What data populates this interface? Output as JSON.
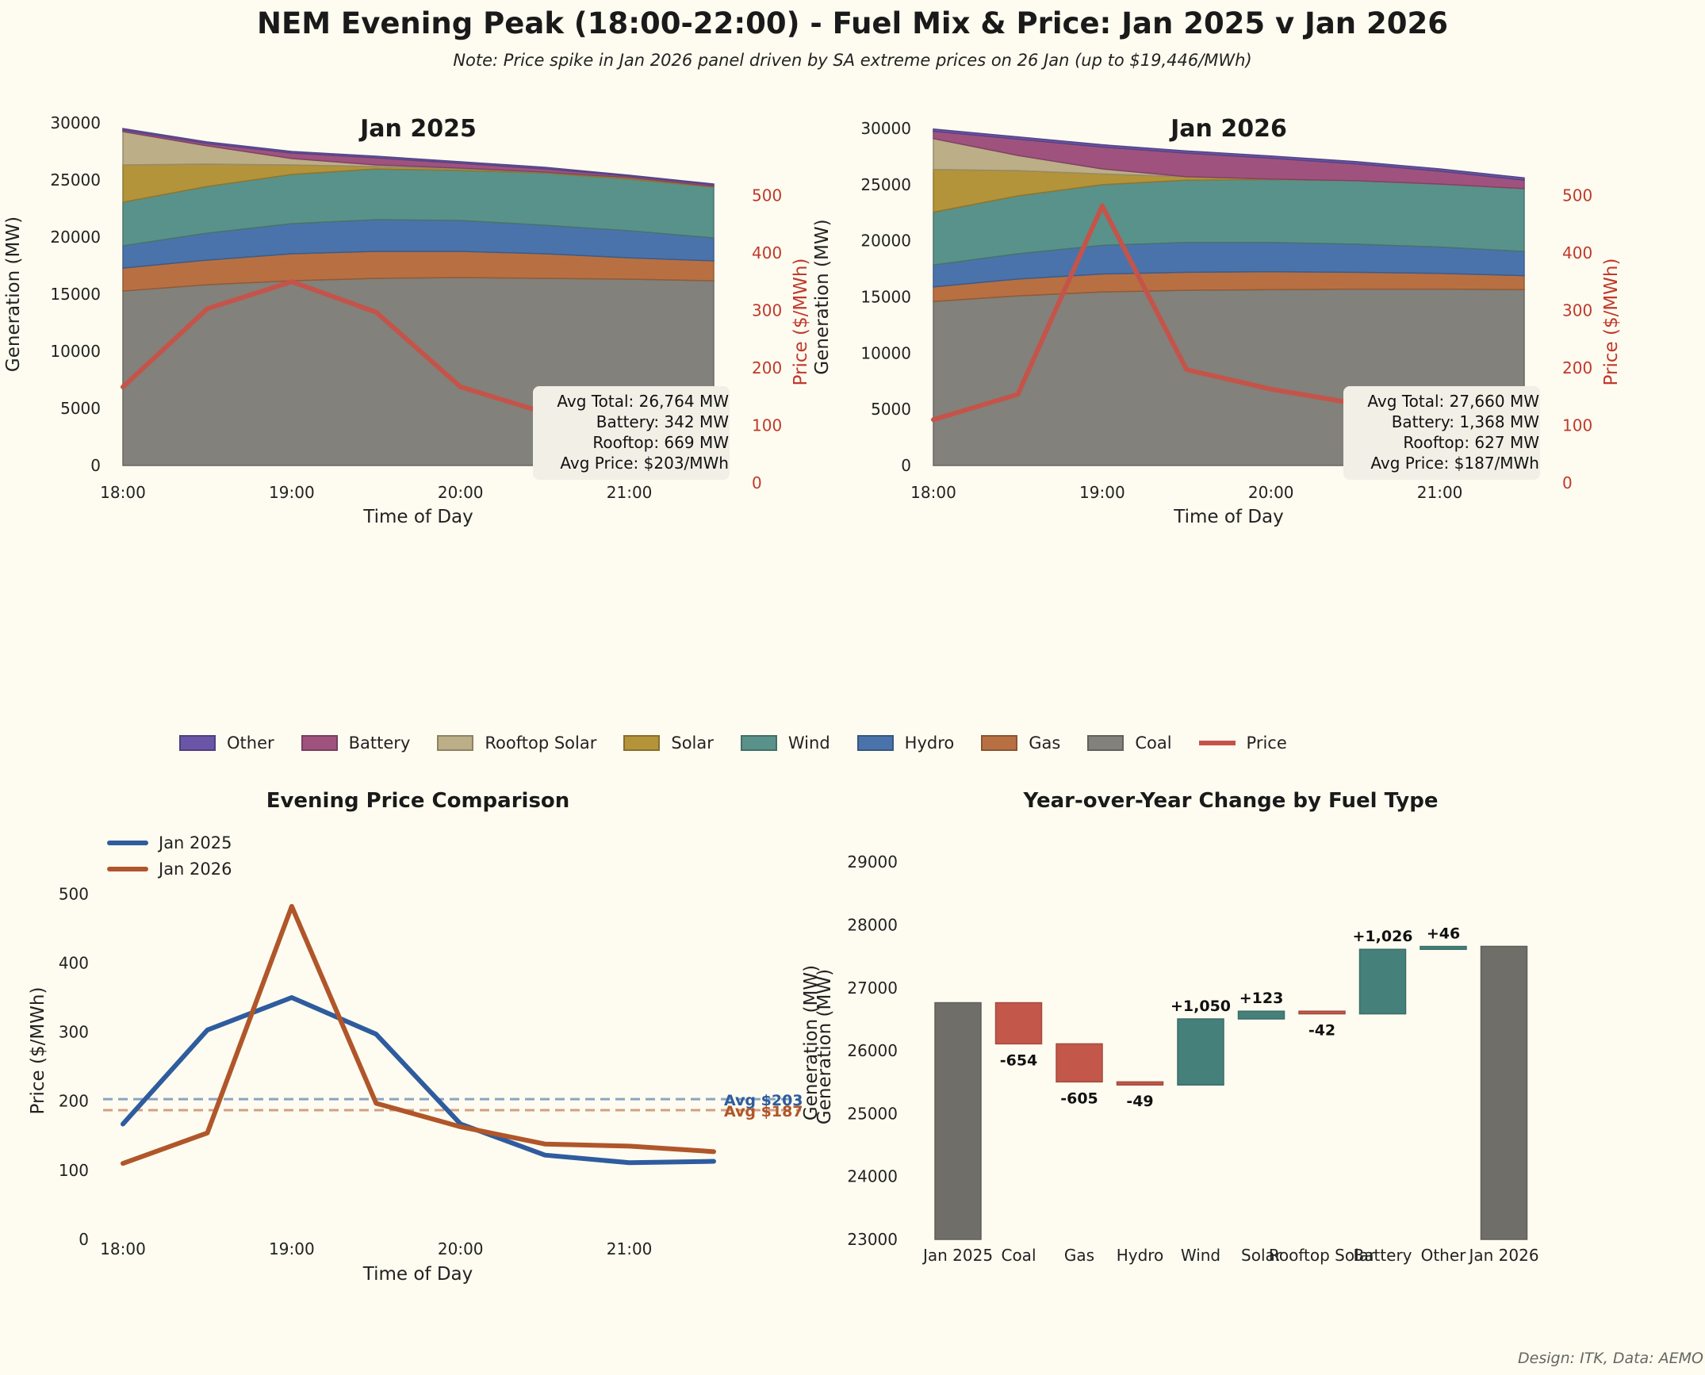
{
  "title": "NEM Evening Peak (18:00-22:00) - Fuel Mix & Price: Jan 2025 v Jan 2026",
  "subtitle": "Note: Price spike in Jan 2026 panel driven by SA extreme prices on 26 Jan (up to $19,446/MWh)",
  "credit": "Design: ITK, Data: AEMO",
  "colors": {
    "Other": "#6a55a8",
    "Battery": "#a0527e",
    "Rooftop Solar": "#bcae86",
    "Solar": "#b4943a",
    "Wind": "#59928a",
    "Hydro": "#4b73ab",
    "Gas": "#b87043",
    "Coal": "#82817b",
    "Price": "#c4544a",
    "Jan 2025": "#2e5c9e",
    "Jan 2026": "#b0562a",
    "increase": "#45807b",
    "decrease": "#c2574a",
    "total": "#6f6e69"
  },
  "legend": [
    "Other",
    "Battery",
    "Rooftop Solar",
    "Solar",
    "Wind",
    "Hydro",
    "Gas",
    "Coal",
    "Price"
  ],
  "chart_data": [
    {
      "type": "area",
      "title": "Jan 2025",
      "xlabel": "Time of Day",
      "ylabel": "Generation (MW)",
      "ylabel_right": "Price ($/MWh)",
      "x": [
        "18:00",
        "18:30",
        "19:00",
        "19:30",
        "20:00",
        "20:30",
        "21:00",
        "21:30"
      ],
      "xticks": [
        "18:00",
        "19:00",
        "20:00",
        "21:00"
      ],
      "ylim": [
        0,
        30000
      ],
      "yticks": [
        0,
        5000,
        10000,
        15000,
        20000,
        25000,
        30000
      ],
      "ylim_right": [
        0,
        560
      ],
      "yticks_right": [
        0,
        100,
        200,
        300,
        400,
        500
      ],
      "stack_order": [
        "Coal",
        "Gas",
        "Hydro",
        "Wind",
        "Solar",
        "Rooftop Solar",
        "Battery",
        "Other"
      ],
      "series": [
        {
          "name": "Coal",
          "values": [
            15280,
            15830,
            16180,
            16390,
            16460,
            16390,
            16320,
            16180
          ]
        },
        {
          "name": "Gas",
          "values": [
            2010,
            2160,
            2360,
            2360,
            2290,
            2150,
            1870,
            1740
          ]
        },
        {
          "name": "Hydro",
          "values": [
            1950,
            2360,
            2640,
            2780,
            2710,
            2500,
            2370,
            2010
          ]
        },
        {
          "name": "Wind",
          "values": [
            3820,
            4090,
            4310,
            4440,
            4370,
            4580,
            4510,
            4450
          ]
        },
        {
          "name": "Solar",
          "values": [
            3260,
            1950,
            830,
            210,
            140,
            70,
            140,
            60
          ]
        },
        {
          "name": "Rooftop Solar",
          "values": [
            2920,
            1600,
            560,
            140,
            70,
            0,
            0,
            0
          ]
        },
        {
          "name": "Battery",
          "values": [
            140,
            200,
            480,
            620,
            420,
            280,
            140,
            140
          ]
        },
        {
          "name": "Other",
          "values": [
            130,
            140,
            140,
            140,
            140,
            140,
            70,
            70
          ]
        }
      ],
      "price": {
        "name": "Price",
        "values": [
          167,
          303,
          350,
          297,
          167,
          122,
          111,
          113
        ]
      },
      "annotation": [
        "Avg Total: 26,764 MW",
        "Battery: 342 MW",
        "Rooftop: 669 MW",
        "Avg Price: $203/MWh"
      ]
    },
    {
      "type": "area",
      "title": "Jan 2026",
      "xlabel": "Time of Day",
      "ylabel": "Generation (MW)",
      "ylabel_right": "Price ($/MWh)",
      "x": [
        "18:00",
        "18:30",
        "19:00",
        "19:30",
        "20:00",
        "20:30",
        "21:00",
        "21:30"
      ],
      "xticks": [
        "18:00",
        "19:00",
        "20:00",
        "21:00"
      ],
      "ylim": [
        0,
        30000
      ],
      "yticks": [
        0,
        5000,
        10000,
        15000,
        20000,
        25000,
        30000
      ],
      "ylim_right": [
        0,
        560
      ],
      "yticks_right": [
        0,
        100,
        200,
        300,
        400,
        500
      ],
      "stack_order": [
        "Coal",
        "Gas",
        "Hydro",
        "Wind",
        "Solar",
        "Rooftop Solar",
        "Battery",
        "Other"
      ],
      "series": [
        {
          "name": "Coal",
          "values": [
            14600,
            15100,
            15450,
            15600,
            15650,
            15700,
            15700,
            15650
          ]
        },
        {
          "name": "Gas",
          "values": [
            1300,
            1500,
            1600,
            1600,
            1600,
            1500,
            1400,
            1250
          ]
        },
        {
          "name": "Hydro",
          "values": [
            1950,
            2250,
            2550,
            2650,
            2600,
            2500,
            2350,
            2150
          ]
        },
        {
          "name": "Wind",
          "values": [
            4700,
            5150,
            5400,
            5550,
            5600,
            5650,
            5600,
            5600
          ]
        },
        {
          "name": "Solar",
          "values": [
            3800,
            2250,
            950,
            300,
            50,
            0,
            0,
            0
          ]
        },
        {
          "name": "Rooftop Solar",
          "values": [
            2750,
            1350,
            450,
            0,
            0,
            0,
            0,
            0
          ]
        },
        {
          "name": "Battery",
          "values": [
            650,
            1450,
            1950,
            2100,
            1850,
            1500,
            1150,
            750
          ]
        },
        {
          "name": "Other",
          "values": [
            200,
            200,
            200,
            200,
            200,
            200,
            200,
            200
          ]
        }
      ],
      "price": {
        "name": "Price",
        "values": [
          110,
          154,
          482,
          197,
          163,
          138,
          135,
          127
        ]
      },
      "annotation": [
        "Avg Total: 27,660 MW",
        "Battery: 1,368 MW",
        "Rooftop: 627 MW",
        "Avg Price: $187/MWh"
      ]
    },
    {
      "type": "line",
      "title": "Evening Price Comparison",
      "xlabel": "Time of Day",
      "ylabel": "Price ($/MWh)",
      "ylabel_right_ghost": "Generation (MW)",
      "x": [
        "18:00",
        "18:30",
        "19:00",
        "19:30",
        "20:00",
        "20:30",
        "21:00",
        "21:30"
      ],
      "xticks": [
        "18:00",
        "19:00",
        "20:00",
        "21:00"
      ],
      "ylim": [
        0,
        560
      ],
      "yticks": [
        0,
        100,
        200,
        300,
        400,
        500
      ],
      "legend_position": "top-left",
      "series": [
        {
          "name": "Jan 2025",
          "values": [
            167,
            303,
            350,
            297,
            167,
            122,
            111,
            113
          ],
          "avg": 203,
          "avg_label": "Avg $203"
        },
        {
          "name": "Jan 2026",
          "values": [
            110,
            154,
            482,
            197,
            163,
            138,
            135,
            127
          ],
          "avg": 187,
          "avg_label": "Avg $187"
        }
      ]
    },
    {
      "type": "bar",
      "subtype": "waterfall",
      "title": "Year-over-Year Change by Fuel Type",
      "xlabel": "",
      "ylabel": "Generation (MW)",
      "ylim": [
        23000,
        29500
      ],
      "yticks": [
        23000,
        24000,
        25000,
        26000,
        27000,
        28000,
        29000
      ],
      "categories": [
        "Jan 2025",
        "Coal",
        "Gas",
        "Hydro",
        "Wind",
        "Solar",
        "Rooftop Solar",
        "Battery",
        "Other",
        "Jan 2026"
      ],
      "values": [
        26764,
        -654,
        -605,
        -49,
        1050,
        123,
        -42,
        1026,
        46,
        27660
      ],
      "kinds": [
        "total",
        "delta",
        "delta",
        "delta",
        "delta",
        "delta",
        "delta",
        "delta",
        "delta",
        "total"
      ],
      "labels": [
        "",
        "-654",
        "-605",
        "-49",
        "+1,050",
        "+123",
        "-42",
        "+1,026",
        "+46",
        ""
      ]
    }
  ]
}
